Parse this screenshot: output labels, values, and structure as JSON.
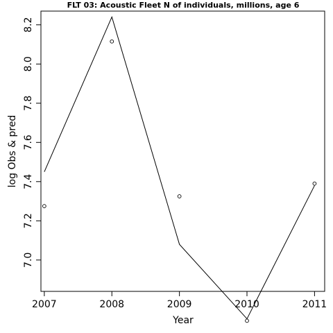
{
  "chart_data": {
    "type": "line",
    "title": "FLT 03: Acoustic Fleet  N of individuals, millions, age 6",
    "xlabel": "Year",
    "ylabel": "log Obs & pred",
    "xlim": [
      2006.95,
      2011.15
    ],
    "ylim": [
      6.84,
      8.27
    ],
    "x_ticks": [
      2007,
      2008,
      2009,
      2010,
      2011
    ],
    "y_ticks": [
      7.0,
      7.2,
      7.4,
      7.6,
      7.8,
      8.0,
      8.2
    ],
    "y_tick_labels": [
      "7.0",
      "7.2",
      "7.4",
      "7.6",
      "7.8",
      "8.0",
      "8.2"
    ],
    "grid": false,
    "series": [
      {
        "style": "line",
        "x": [
          2007,
          2008,
          2009,
          2010,
          2011
        ],
        "values": [
          7.45,
          8.24,
          7.08,
          6.7,
          7.38
        ]
      },
      {
        "style": "points",
        "x": [
          2007,
          2008,
          2009,
          2010,
          2011
        ],
        "values": [
          7.275,
          8.115,
          7.325,
          6.69,
          7.39
        ]
      }
    ]
  }
}
